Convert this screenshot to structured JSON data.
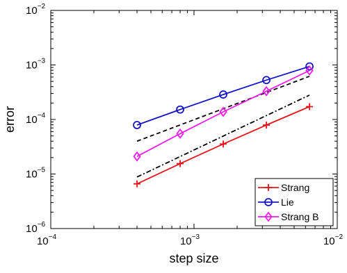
{
  "chart_data": {
    "type": "line",
    "title": "",
    "xlabel": "step size",
    "ylabel": "error",
    "xscale": "log",
    "yscale": "log",
    "xlim": [
      0.0001,
      0.01
    ],
    "ylim": [
      1e-06,
      0.01
    ],
    "grid": false,
    "legend_position": "bottom-right",
    "x_ticks": [
      {
        "value": 0.0001,
        "base": "10",
        "exp": "−4"
      },
      {
        "value": 0.001,
        "base": "10",
        "exp": "−3"
      },
      {
        "value": 0.01,
        "base": "10",
        "exp": "−2"
      }
    ],
    "y_ticks": [
      {
        "value": 1e-06,
        "base": "10",
        "exp": "−6"
      },
      {
        "value": 1e-05,
        "base": "10",
        "exp": "−5"
      },
      {
        "value": 0.0001,
        "base": "10",
        "exp": "−4"
      },
      {
        "value": 0.001,
        "base": "10",
        "exp": "−3"
      },
      {
        "value": 0.01,
        "base": "10",
        "exp": "−2"
      }
    ],
    "x": [
      0.0004,
      0.0008,
      0.0016,
      0.0032,
      0.0064
    ],
    "series": [
      {
        "name": "Strang",
        "color": "#e8141a",
        "marker": "plus",
        "values": [
          6.6e-06,
          1.55e-05,
          3.55e-05,
          7.9e-05,
          0.000172
        ]
      },
      {
        "name": "Lie",
        "color": "#1515c8",
        "marker": "circle",
        "values": [
          7.9e-05,
          0.000152,
          0.000287,
          0.000528,
          0.00094
        ]
      },
      {
        "name": "Strang B",
        "color": "#ee1ce8",
        "marker": "diamond",
        "values": [
          2.1e-05,
          5.5e-05,
          0.000138,
          0.00033,
          0.00079
        ]
      }
    ],
    "reference_lines": [
      {
        "style": "dashed",
        "color": "#000000",
        "x": [
          0.0004,
          0.0064
        ],
        "y": [
          4e-05,
          0.00062
        ]
      },
      {
        "style": "dashdot",
        "color": "#000000",
        "x": [
          0.0004,
          0.0064
        ],
        "y": [
          8.8e-06,
          0.00028
        ]
      }
    ]
  }
}
